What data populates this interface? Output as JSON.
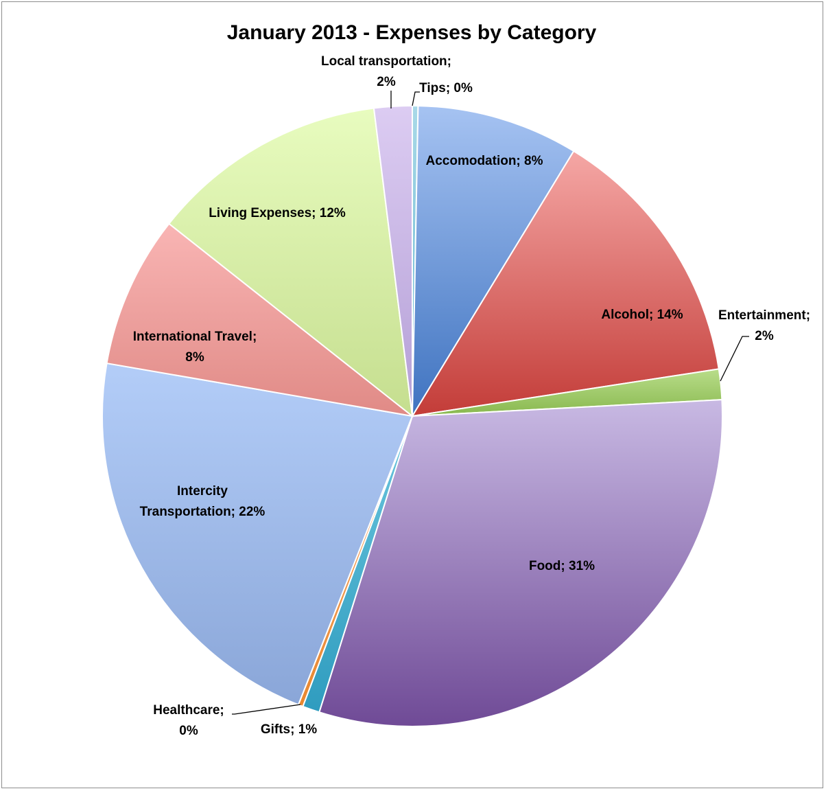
{
  "chart_data": {
    "type": "pie",
    "title": "January 2013 - Expenses by Category",
    "label_separator": "; ",
    "slices": [
      {
        "name": "Tips",
        "value": 0.3,
        "label": "0%",
        "color_top": "#a9d9e8",
        "color_bottom": "#5fb6cf"
      },
      {
        "name": "Accomodation",
        "value": 8.5,
        "label": "8%",
        "color_top": "#a6c3f2",
        "color_bottom": "#3f73c0"
      },
      {
        "name": "Alcohol",
        "value": 14,
        "label": "14%",
        "color_top": "#f5a7a5",
        "color_bottom": "#c33c38"
      },
      {
        "name": "Entertainment",
        "value": 1.6,
        "label": "2%",
        "color_top": "#b9dd8a",
        "color_bottom": "#88b84e"
      },
      {
        "name": "Food",
        "value": 31,
        "label": "31%",
        "color_top": "#c8b9e3",
        "color_bottom": "#6f4a96"
      },
      {
        "name": "Gifts",
        "value": 0.9,
        "label": "1%",
        "color_top": "#6cc6de",
        "color_bottom": "#2f9cbf"
      },
      {
        "name": "Healthcare",
        "value": 0.25,
        "label": "0%",
        "color_top": "#f8b27a",
        "color_bottom": "#e8872f"
      },
      {
        "name": "Intercity Transportation",
        "value": 21.95,
        "label": "22%",
        "color_top": "#b3cdf8",
        "color_bottom": "#8aa6d8"
      },
      {
        "name": "International Travel",
        "value": 8,
        "label": "8%",
        "color_top": "#f9b5b4",
        "color_bottom": "#e08a86"
      },
      {
        "name": "Living Expenses",
        "value": 12.5,
        "label": "12%",
        "color_top": "#e8fcbf",
        "color_bottom": "#c5de8f"
      },
      {
        "name": "Local transportation",
        "value": 2,
        "label": "2%",
        "color_top": "#dcccf2",
        "color_bottom": "#b49fd6"
      }
    ]
  }
}
